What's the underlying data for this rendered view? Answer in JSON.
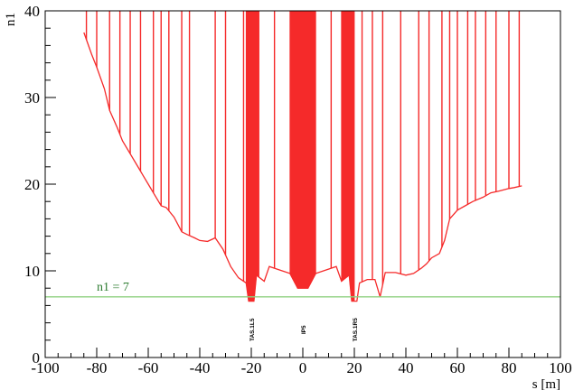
{
  "chart_data": {
    "type": "line",
    "title": "",
    "xlabel": "s [m]",
    "ylabel": "n1",
    "xlim": [
      -100,
      100
    ],
    "ylim": [
      0,
      40
    ],
    "x_ticks": [
      -100,
      -80,
      -60,
      -40,
      -20,
      0,
      20,
      40,
      60,
      80,
      100
    ],
    "y_ticks": [
      0,
      10,
      20,
      30,
      40
    ],
    "grid": false,
    "colors": {
      "aperture": "#f52a2a",
      "threshold": "#8fd080"
    },
    "threshold": {
      "value": 7,
      "label": "n1 = 7"
    },
    "markers": [
      {
        "x": -20,
        "label": "TAS.1L5"
      },
      {
        "x": 0,
        "label": "IP5"
      },
      {
        "x": 20,
        "label": "TAS.1R5"
      }
    ],
    "series": [
      {
        "type": "envelope",
        "points": [
          [
            -85,
            37.5
          ],
          [
            -82,
            35
          ],
          [
            -80,
            33.5
          ],
          [
            -77,
            31
          ],
          [
            -75,
            28.5
          ],
          [
            -72,
            26.5
          ],
          [
            -70,
            25
          ],
          [
            -67,
            23.5
          ],
          [
            -65,
            22.5
          ],
          [
            -62,
            21
          ],
          [
            -60,
            20
          ],
          [
            -57,
            18.5
          ],
          [
            -55,
            17.5
          ],
          [
            -53,
            17.3
          ],
          [
            -50,
            16.2
          ],
          [
            -47,
            14.5
          ],
          [
            -45,
            14.2
          ],
          [
            -42,
            13.8
          ],
          [
            -40,
            13.5
          ],
          [
            -37,
            13.4
          ],
          [
            -34,
            13.8
          ],
          [
            -31,
            12.5
          ],
          [
            -28,
            10.5
          ],
          [
            -25,
            9.2
          ],
          [
            -22,
            8.6
          ],
          [
            -21,
            6.5
          ],
          [
            -19,
            6.5
          ],
          [
            -18,
            9.5
          ],
          [
            -15,
            8.8
          ],
          [
            -13,
            10.5
          ],
          [
            -5,
            9.7
          ],
          [
            -2,
            8
          ],
          [
            2,
            8
          ],
          [
            5,
            9.7
          ],
          [
            13,
            10.5
          ],
          [
            15,
            8.8
          ],
          [
            18,
            9.5
          ],
          [
            19,
            6.5
          ],
          [
            21,
            6.5
          ],
          [
            22,
            8.6
          ],
          [
            25,
            9
          ],
          [
            28,
            9
          ],
          [
            30,
            7
          ],
          [
            32,
            9.8
          ],
          [
            36,
            9.8
          ],
          [
            40,
            9.5
          ],
          [
            43,
            9.7
          ],
          [
            46,
            10.3
          ],
          [
            48,
            10.8
          ],
          [
            50,
            11.5
          ],
          [
            53,
            12
          ],
          [
            55,
            13.5
          ],
          [
            57,
            16
          ],
          [
            60,
            17
          ],
          [
            63,
            17.5
          ],
          [
            66,
            18
          ],
          [
            70,
            18.5
          ],
          [
            73,
            19
          ],
          [
            76,
            19.2
          ],
          [
            80,
            19.5
          ],
          [
            82,
            19.6
          ],
          [
            85,
            19.8
          ]
        ],
        "spikes": [
          -84,
          -80,
          -75,
          -71,
          -67,
          -63,
          -58,
          -55,
          -52,
          -47,
          -44,
          -34,
          -30,
          -23,
          -11,
          11,
          16,
          23,
          27,
          31,
          38,
          45,
          49,
          54,
          57,
          60,
          64,
          67,
          71,
          75,
          80,
          84
        ],
        "dense_bands": [
          [
            -22,
            -17
          ],
          [
            -5,
            5
          ],
          [
            15,
            20
          ]
        ]
      }
    ]
  }
}
